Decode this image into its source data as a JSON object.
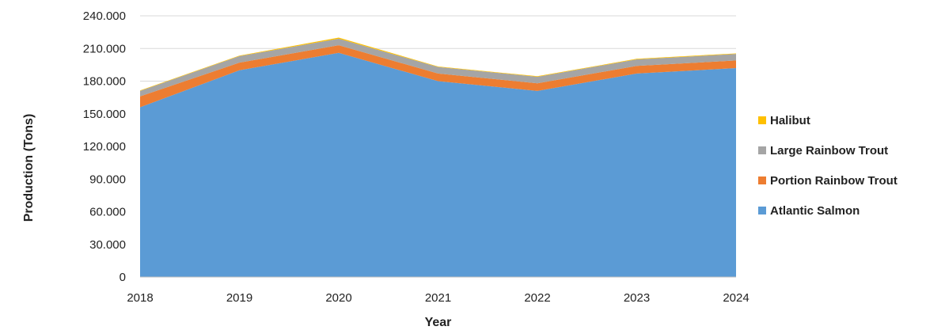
{
  "chart_data": {
    "type": "area",
    "stacked": true,
    "xlabel": "Year",
    "ylabel": "Production (Tons)",
    "x": [
      "2018",
      "2019",
      "2020",
      "2021",
      "2022",
      "2023",
      "2024"
    ],
    "ylim": [
      0,
      240000
    ],
    "yticks": [
      "0",
      "30.000",
      "60.000",
      "90.000",
      "120.000",
      "150.000",
      "180.000",
      "210.000",
      "240.000"
    ],
    "grid": true,
    "legend_position": "right",
    "series": [
      {
        "name": "Atlantic Salmon",
        "color": "#5b9bd5",
        "values": [
          156000,
          190000,
          206000,
          180000,
          171000,
          187000,
          192000
        ]
      },
      {
        "name": "Portion Rainbow Trout",
        "color": "#ed7d31",
        "values": [
          10000,
          7000,
          7000,
          7000,
          7000,
          7000,
          7000
        ]
      },
      {
        "name": "Large Rainbow Trout",
        "color": "#a5a5a5",
        "values": [
          5000,
          6000,
          6000,
          6000,
          6000,
          6000,
          6000
        ]
      },
      {
        "name": "Halibut",
        "color": "#ffc000",
        "values": [
          500,
          500,
          1000,
          500,
          500,
          500,
          500
        ]
      }
    ]
  }
}
